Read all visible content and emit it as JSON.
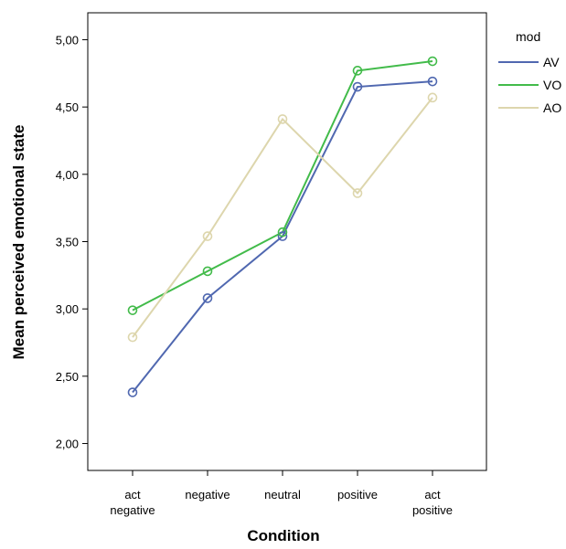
{
  "chart_data": {
    "type": "line",
    "categories": [
      [
        "act",
        "negative"
      ],
      [
        "negative"
      ],
      [
        "neutral"
      ],
      [
        "positive"
      ],
      [
        "act",
        "positive"
      ]
    ],
    "xlabel": "Condition",
    "ylabel": "Mean perceived emotional state",
    "ylim": [
      1.8,
      5.2
    ],
    "yticks": [
      "2,00",
      "2,50",
      "3,00",
      "3,50",
      "4,00",
      "4,50",
      "5,00"
    ],
    "ytick_values": [
      2.0,
      2.5,
      3.0,
      3.5,
      4.0,
      4.5,
      5.0
    ],
    "grid": false,
    "legend": {
      "title": "mod",
      "placement": "right"
    },
    "series": [
      {
        "name": "AV",
        "color": "#5068b0",
        "values": [
          2.38,
          3.08,
          3.54,
          4.65,
          4.69
        ]
      },
      {
        "name": "VO",
        "color": "#42bb4a",
        "values": [
          2.99,
          3.28,
          3.57,
          4.77,
          4.84
        ]
      },
      {
        "name": "AO",
        "color": "#ddd6ad",
        "values": [
          2.79,
          3.54,
          4.41,
          3.86,
          4.57
        ]
      }
    ]
  }
}
